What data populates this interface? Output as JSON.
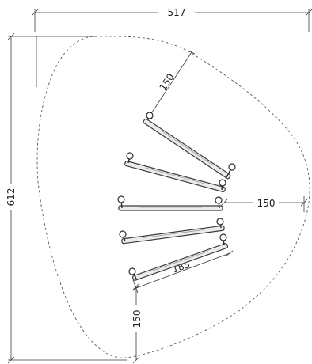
{
  "plan": {
    "overall_width": "517",
    "overall_height": "612",
    "bar_length": "185",
    "top_offset": "150",
    "side_offset": "150",
    "bottom_offset": "150"
  },
  "equipment": {
    "bar_count": 5
  }
}
